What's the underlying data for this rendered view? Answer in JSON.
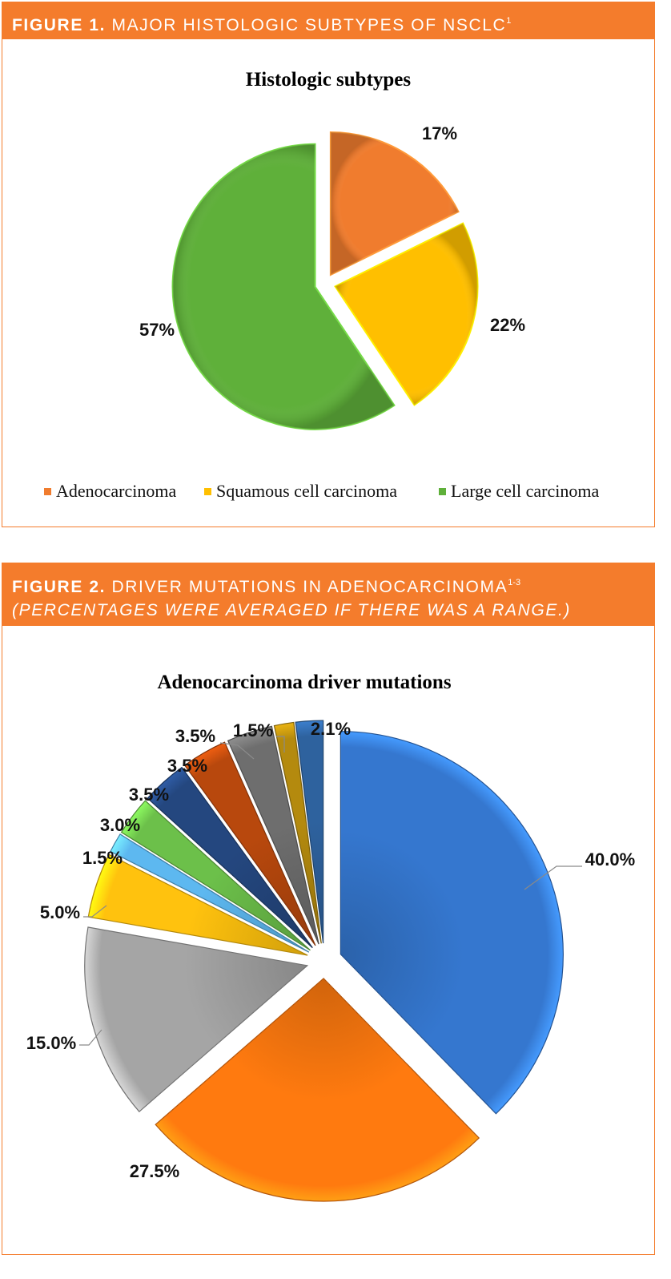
{
  "figure1": {
    "banner_label": "FIGURE 1.",
    "banner_text": " MAJOR HISTOLOGIC SUBTYPES OF NSCLC",
    "banner_sup": "1"
  },
  "figure2": {
    "banner_label": "FIGURE 2.",
    "banner_text": " DRIVER MUTATIONS IN ADENOCARCINOMA",
    "banner_sup": "1-3",
    "banner_note": "(PERCENTAGES WERE AVERAGED IF THERE WAS A RANGE.)"
  },
  "chart_data": [
    {
      "type": "pie",
      "title": "Histologic subtypes",
      "categories": [
        "Adenocarcinoma",
        "Squamous cell carcinoma",
        "Large cell carcinoma"
      ],
      "values": [
        17,
        22,
        57
      ],
      "value_labels": [
        "17%",
        "22%",
        "57%"
      ],
      "colors": [
        "#f07c2e",
        "#ffbf00",
        "#5fb03a"
      ],
      "legend": "bottom"
    },
    {
      "type": "pie",
      "title": "Adenocarcinoma driver mutations",
      "values": [
        40.0,
        27.5,
        15.0,
        5.0,
        1.5,
        3.0,
        3.5,
        3.5,
        3.5,
        1.5,
        2.1
      ],
      "value_labels": [
        "40.0%",
        "27.5%",
        "15.0%",
        "5.0%",
        "1.5%",
        "3.0%",
        "3.5%",
        "3.5%",
        "3.5%",
        "1.5%",
        "2.1%"
      ],
      "colors": [
        "#3577cf",
        "#ff7a0f",
        "#a5a5a5",
        "#ffc20e",
        "#5db8f0",
        "#6cc04a",
        "#24477f",
        "#b8480d",
        "#6e6e6e",
        "#b48a0e",
        "#2e629e"
      ],
      "legend": "none"
    }
  ]
}
